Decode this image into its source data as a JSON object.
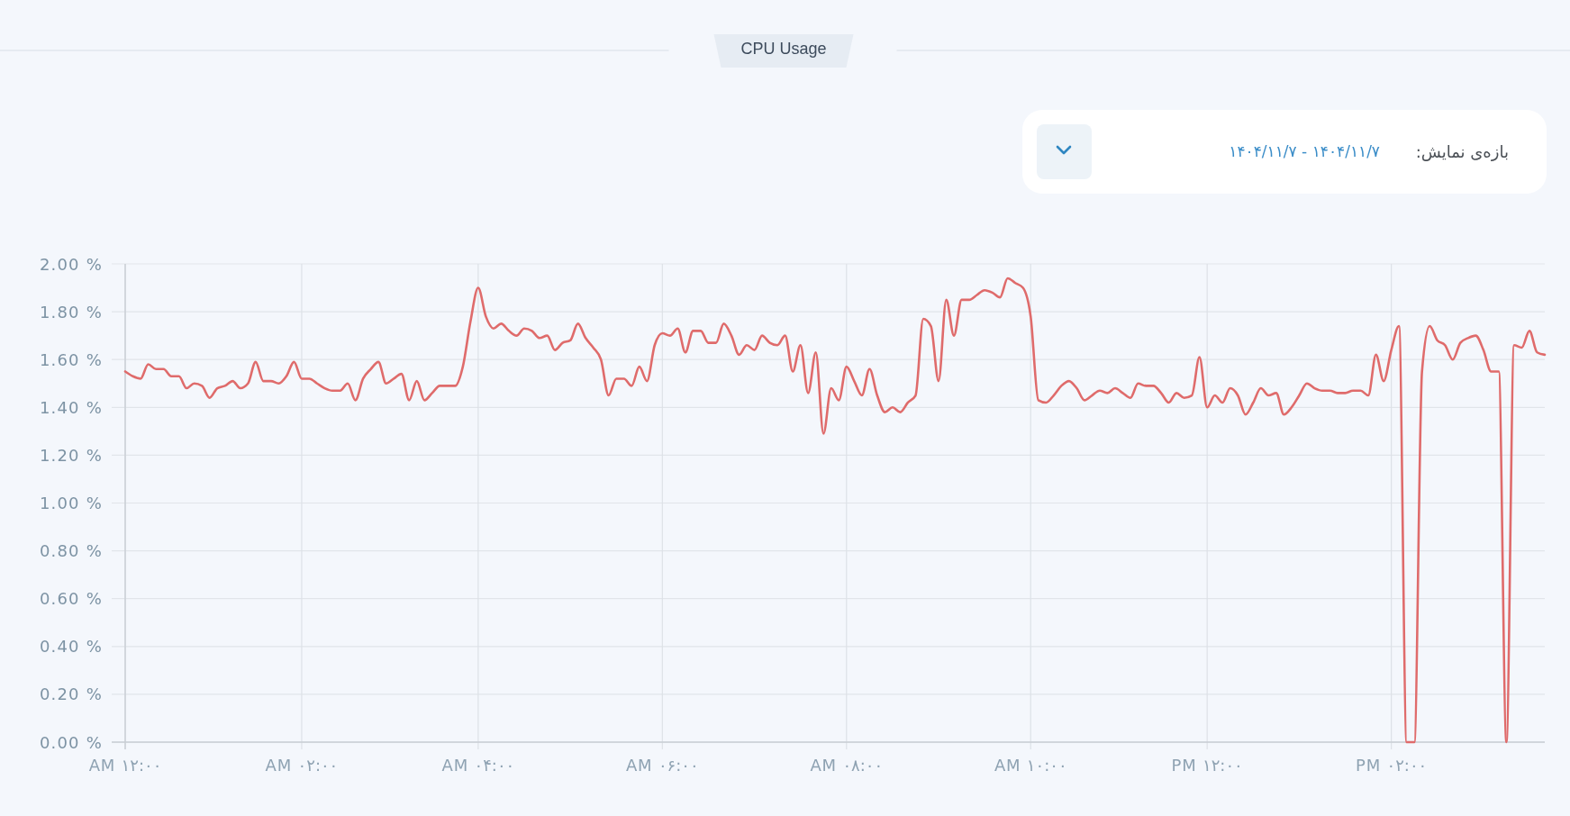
{
  "chart_data": {
    "type": "line",
    "title": "CPU Usage",
    "annotations": [
      "بازه‌ی نمایش:",
      "۱۴۰۴/۱۱/۷ - ۱۴۰۴/۱۱/۷"
    ],
    "color": "#df6b6b",
    "grid": true,
    "ylim": [
      0,
      2
    ],
    "yticks": [
      {
        "value": 0,
        "label": "0.00 %"
      },
      {
        "value": 0.2,
        "label": "0.20 %"
      },
      {
        "value": 0.4,
        "label": "0.40 %"
      },
      {
        "value": 0.6,
        "label": "0.60 %"
      },
      {
        "value": 0.8,
        "label": "0.80 %"
      },
      {
        "value": 1,
        "label": "1.00 %"
      },
      {
        "value": 1.2,
        "label": "1.20 %"
      },
      {
        "value": 1.4,
        "label": "1.40 %"
      },
      {
        "value": 1.6,
        "label": "1.60 %"
      },
      {
        "value": 1.8,
        "label": "1.80 %"
      },
      {
        "value": 2,
        "label": "2.00 %"
      }
    ],
    "categories": [
      "AM ۱۲:۰۰",
      null,
      null,
      null,
      null,
      null,
      null,
      null,
      null,
      null,
      null,
      null,
      null,
      null,
      null,
      null,
      null,
      null,
      null,
      null,
      null,
      null,
      null,
      "AM ۰۲:۰۰",
      null,
      null,
      null,
      null,
      null,
      null,
      null,
      null,
      null,
      null,
      null,
      null,
      null,
      null,
      null,
      null,
      null,
      null,
      null,
      null,
      null,
      null,
      "AM ۰۴:۰۰",
      null,
      null,
      null,
      null,
      null,
      null,
      null,
      null,
      null,
      null,
      null,
      null,
      null,
      null,
      null,
      null,
      null,
      null,
      null,
      null,
      null,
      null,
      null,
      "AM ۰۶:۰۰",
      null,
      null,
      null,
      null,
      null,
      null,
      null,
      null,
      null,
      null,
      null,
      null,
      null,
      null,
      null,
      null,
      null,
      null,
      null,
      null,
      null,
      null,
      null,
      "AM ۰۸:۰۰",
      null,
      null,
      null,
      null,
      null,
      null,
      null,
      null,
      null,
      null,
      null,
      null,
      null,
      null,
      null,
      null,
      null,
      null,
      null,
      null,
      null,
      null,
      null,
      "AM ۱۰:۰۰",
      null,
      null,
      null,
      null,
      null,
      null,
      null,
      null,
      null,
      null,
      null,
      null,
      null,
      null,
      null,
      null,
      null,
      null,
      null,
      null,
      null,
      null,
      "PM ۱۲:۰۰",
      null,
      null,
      null,
      null,
      null,
      null,
      null,
      null,
      null,
      null,
      null,
      null,
      null,
      null,
      null,
      null,
      null,
      null,
      null,
      null,
      null,
      null,
      null,
      "PM ۰۲:۰۰",
      null,
      null,
      null,
      null,
      null,
      null,
      null,
      null,
      null,
      null,
      null,
      null,
      null,
      null,
      null,
      null,
      null,
      null,
      null,
      null
    ],
    "values": [
      1.55,
      1.53,
      1.52,
      1.58,
      1.56,
      1.56,
      1.53,
      1.53,
      1.48,
      1.5,
      1.49,
      1.44,
      1.48,
      1.49,
      1.51,
      1.48,
      1.5,
      1.59,
      1.51,
      1.51,
      1.5,
      1.53,
      1.59,
      1.52,
      1.52,
      1.5,
      1.48,
      1.47,
      1.47,
      1.5,
      1.43,
      1.52,
      1.56,
      1.59,
      1.5,
      1.52,
      1.54,
      1.43,
      1.51,
      1.43,
      1.46,
      1.49,
      1.49,
      1.49,
      1.57,
      1.76,
      1.9,
      1.78,
      1.73,
      1.75,
      1.72,
      1.7,
      1.73,
      1.72,
      1.69,
      1.7,
      1.64,
      1.67,
      1.68,
      1.75,
      1.69,
      1.65,
      1.6,
      1.45,
      1.52,
      1.52,
      1.49,
      1.57,
      1.51,
      1.66,
      1.71,
      1.7,
      1.73,
      1.63,
      1.72,
      1.72,
      1.67,
      1.67,
      1.75,
      1.7,
      1.62,
      1.66,
      1.64,
      1.7,
      1.67,
      1.66,
      1.7,
      1.55,
      1.66,
      1.46,
      1.63,
      1.29,
      1.48,
      1.43,
      1.57,
      1.51,
      1.45,
      1.56,
      1.45,
      1.38,
      1.4,
      1.38,
      1.42,
      1.45,
      1.77,
      1.74,
      1.51,
      1.85,
      1.7,
      1.85,
      1.85,
      1.87,
      1.89,
      1.88,
      1.86,
      1.94,
      1.92,
      1.9,
      1.78,
      1.43,
      1.42,
      1.45,
      1.49,
      1.51,
      1.48,
      1.43,
      1.45,
      1.47,
      1.46,
      1.48,
      1.46,
      1.44,
      1.5,
      1.49,
      1.49,
      1.46,
      1.42,
      1.46,
      1.44,
      1.45,
      1.61,
      1.4,
      1.45,
      1.42,
      1.48,
      1.45,
      1.37,
      1.42,
      1.48,
      1.45,
      1.46,
      1.37,
      1.4,
      1.45,
      1.5,
      1.48,
      1.47,
      1.47,
      1.46,
      1.46,
      1.47,
      1.47,
      1.45,
      1.62,
      1.51,
      1.64,
      1.74,
      0,
      0,
      1.55,
      1.74,
      1.68,
      1.66,
      1.6,
      1.67,
      1.69,
      1.7,
      1.64,
      1.55,
      1.55,
      0,
      1.66,
      1.65,
      1.72,
      1.63,
      1.62
    ]
  }
}
